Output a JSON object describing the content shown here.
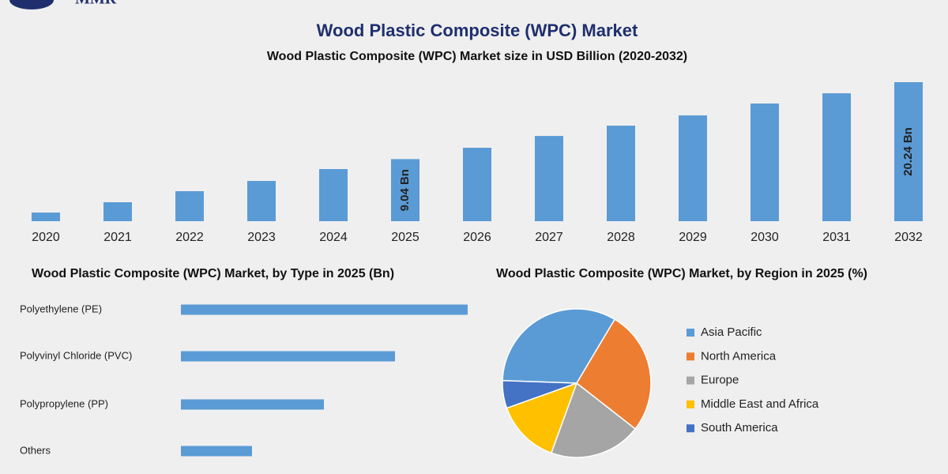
{
  "logo": "MMR",
  "chart_data": [
    {
      "type": "bar",
      "title": "Wood Plastic Composite (WPC) Market",
      "subtitle": "Wood Plastic Composite (WPC) Market size in USD Billion (2020-2032)",
      "categories": [
        "2020",
        "2021",
        "2022",
        "2023",
        "2024",
        "2025",
        "2026",
        "2027",
        "2028",
        "2029",
        "2030",
        "2031",
        "2032"
      ],
      "values": [
        1.26,
        2.76,
        4.37,
        5.86,
        7.59,
        9.04,
        10.69,
        12.41,
        13.91,
        15.4,
        17.13,
        18.62,
        20.24
      ],
      "value_labels": [
        null,
        null,
        null,
        null,
        null,
        "9.04 Bn",
        null,
        null,
        null,
        null,
        null,
        null,
        "20.24 Bn"
      ],
      "color": "#5b9bd5"
    },
    {
      "type": "hbar",
      "title": "Wood Plastic Composite (WPC) Market, by Type in 2025 (Bn)",
      "categories": [
        "Polyethylene (PE)",
        "Polyvinyl Chloride (PVC)",
        "Polypropylene (PP)",
        "Others"
      ],
      "values": [
        3.63,
        2.71,
        1.81,
        0.9
      ],
      "color": "#5b9bd5"
    },
    {
      "type": "pie",
      "title": "Wood Plastic Composite (WPC) Market, by Region in 2025 (%)",
      "categories": [
        "Asia Pacific",
        "North America",
        "Europe",
        "Middle East and Africa",
        "South America"
      ],
      "values": [
        33,
        27,
        20,
        14,
        6
      ],
      "colors": [
        "#5b9bd5",
        "#ed7d31",
        "#a5a5a5",
        "#ffc000",
        "#4472c4"
      ]
    }
  ]
}
